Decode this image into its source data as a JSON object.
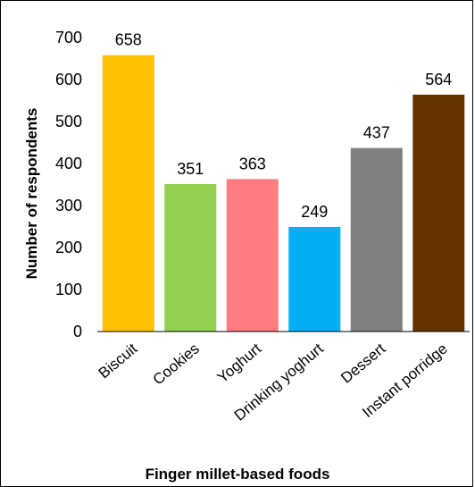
{
  "chart_data": {
    "type": "bar",
    "title": "",
    "xlabel": "Finger millet-based foods",
    "ylabel": "Number of respondents",
    "categories": [
      "Biscuit",
      "Cookies",
      "Yoghurt",
      "Drinking yoghurt",
      "Dessert",
      "Instant porridge"
    ],
    "values": [
      658,
      351,
      363,
      249,
      437,
      564
    ],
    "colors": [
      "#ffc000",
      "#92d050",
      "#ff7c80",
      "#00b0f0",
      "#808080",
      "#663300"
    ],
    "ylim": [
      0,
      700
    ],
    "yticks": [
      0,
      100,
      200,
      300,
      400,
      500,
      600,
      700
    ],
    "grid": false,
    "data_labels": true
  }
}
